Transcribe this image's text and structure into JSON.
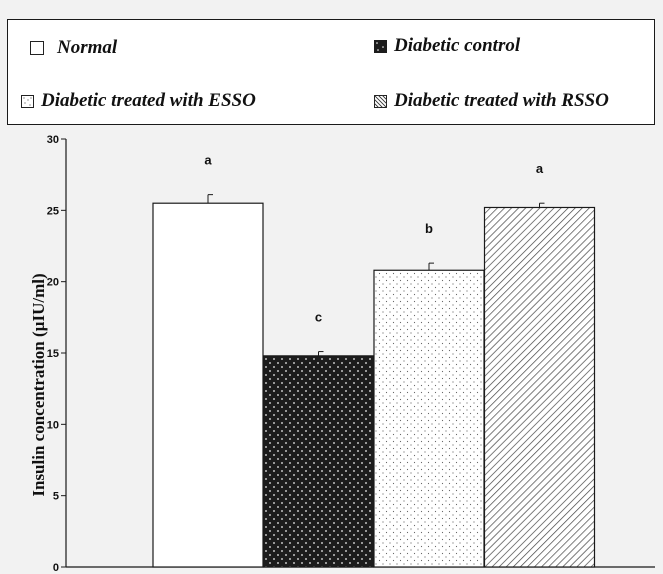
{
  "legend": {
    "items": [
      {
        "label": "Normal",
        "pattern": "white"
      },
      {
        "label": "Diabetic control",
        "pattern": "dark-dots"
      },
      {
        "label": "Diabetic treated with ESSO",
        "pattern": "light-dots"
      },
      {
        "label": "Diabetic treated with RSSO",
        "pattern": "diagonal-hatch"
      }
    ]
  },
  "chart_data": {
    "type": "bar",
    "categories": [
      "Normal",
      "Diabetic control",
      "Diabetic treated with ESSO",
      "Diabetic treated with RSSO"
    ],
    "values": [
      25.5,
      14.8,
      20.8,
      25.2
    ],
    "errors": [
      0.6,
      0.3,
      0.5,
      0.3
    ],
    "significance_letters": [
      "a",
      "c",
      "b",
      "a"
    ],
    "ylabel": "Insulin concentration (µIU/ml)",
    "xlabel": "",
    "ylim": [
      0,
      30
    ],
    "yticks": [
      0,
      5,
      10,
      15,
      20,
      25,
      30
    ],
    "grid": false,
    "legend_position": "top",
    "colors": {
      "outline": "#1a1a1a",
      "dark_fill": "#1c1c1c",
      "background": "#ffffff"
    }
  }
}
